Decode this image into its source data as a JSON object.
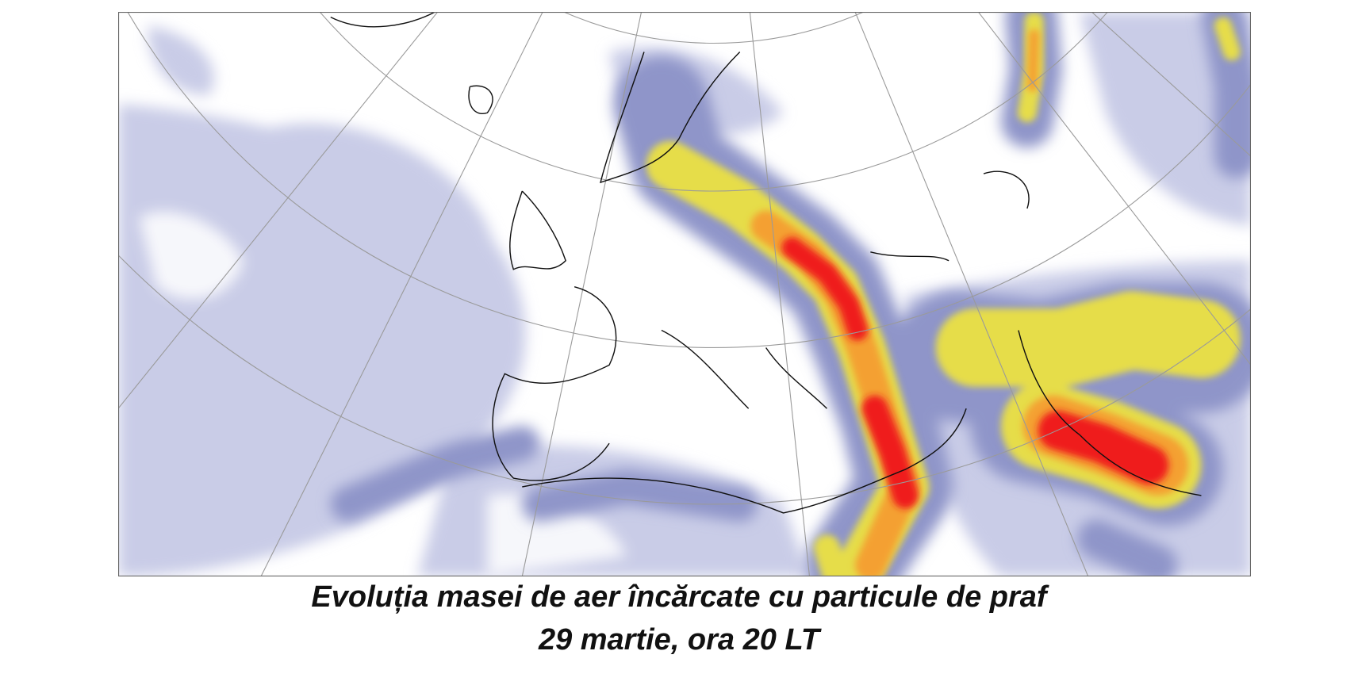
{
  "caption": {
    "title": "Evoluția masei de aer încărcate cu particule de praf",
    "subtitle": "29 martie, ora 20 LT"
  }
}
